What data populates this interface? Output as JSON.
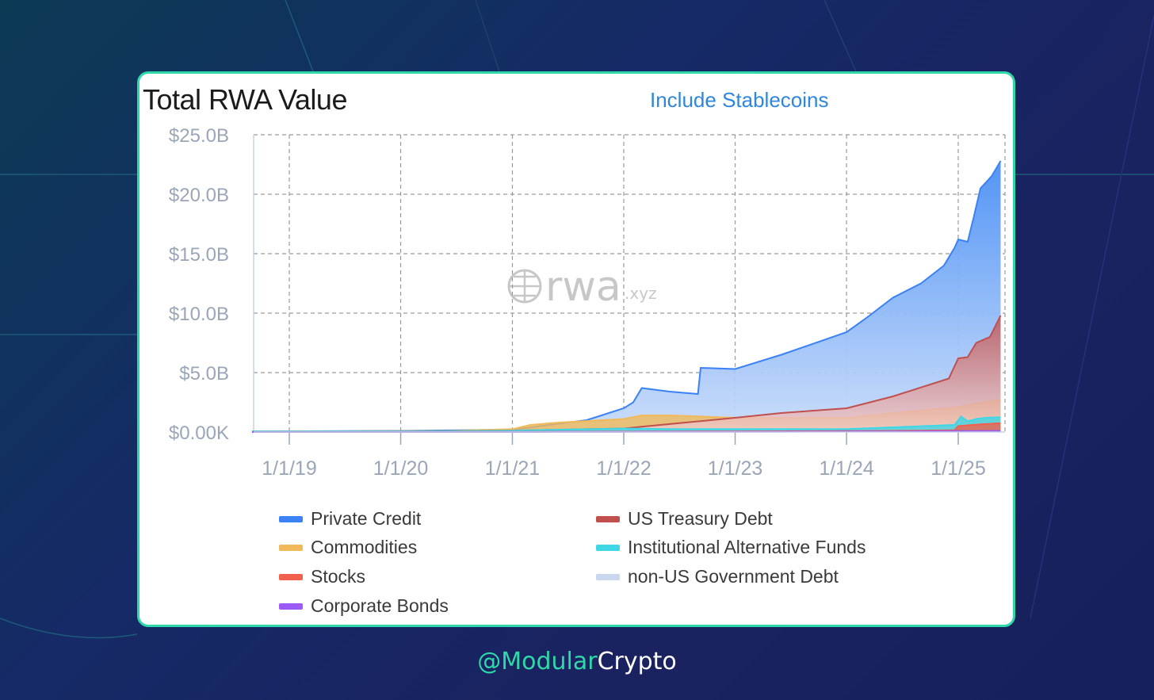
{
  "card": {
    "title": "Total RWA Value",
    "toggle_label": "Include Stablecoins"
  },
  "watermark": {
    "main": "rwa",
    "suffix": ".xyz"
  },
  "credit": {
    "handle": "@Modular",
    "name": "Crypto"
  },
  "colors": {
    "accent": "#2fd8a8",
    "link": "#2e86de",
    "private_credit": "#3b82f6",
    "us_treasury": "#c0504d",
    "commodities": "#f0b95a",
    "institutional_funds": "#3fd6e6",
    "stocks": "#f25f4c",
    "non_us_gov_debt": "#c9d8ef",
    "corporate_bonds": "#9b59f6"
  },
  "chart_data": {
    "type": "area",
    "stacked": true,
    "title": "Total RWA Value",
    "xlabel": "",
    "ylabel": "",
    "ylim": [
      0,
      25
    ],
    "y_unit": "billion USD",
    "yticks": [
      0,
      5,
      10,
      15,
      20,
      25
    ],
    "ytick_labels": [
      "$0.00K",
      "$5.0B",
      "$10.0B",
      "$15.0B",
      "$20.0B",
      "$25.0B"
    ],
    "xlim": [
      "2018-09-01",
      "2025-05-20"
    ],
    "xticks": [
      "2019-01-01",
      "2020-01-01",
      "2021-01-01",
      "2022-01-01",
      "2023-01-01",
      "2024-01-01",
      "2025-01-01"
    ],
    "xtick_labels": [
      "1/1/19",
      "1/1/20",
      "1/1/21",
      "1/1/22",
      "1/1/23",
      "1/1/24",
      "1/1/25"
    ],
    "grid": true,
    "legend_position": "bottom",
    "legend": [
      "Private Credit",
      "US Treasury Debt",
      "Commodities",
      "Institutional Alternative Funds",
      "Stocks",
      "non-US Government Debt",
      "Corporate Bonds"
    ],
    "series_totals_note": "",
    "stack_levels": [
      {
        "name": "Corporate Bonds",
        "top": [
          [
            "2018-09-01",
            0.0
          ],
          [
            "2021-01-01",
            0.0
          ],
          [
            "2023-01-01",
            0.02
          ],
          [
            "2024-06-01",
            0.05
          ],
          [
            "2025-05-20",
            0.1
          ]
        ]
      },
      {
        "name": "Stocks",
        "top": [
          [
            "2018-09-01",
            0.0
          ],
          [
            "2021-01-01",
            0.02
          ],
          [
            "2023-01-01",
            0.05
          ],
          [
            "2024-06-01",
            0.1
          ],
          [
            "2024-12-20",
            0.15
          ],
          [
            "2025-01-01",
            0.5
          ],
          [
            "2025-02-15",
            0.6
          ],
          [
            "2025-05-20",
            0.75
          ]
        ]
      },
      {
        "name": "Institutional Alternative Funds",
        "top": [
          [
            "2018-09-01",
            0.05
          ],
          [
            "2020-06-01",
            0.08
          ],
          [
            "2021-01-01",
            0.12
          ],
          [
            "2021-06-01",
            0.2
          ],
          [
            "2022-01-01",
            0.3
          ],
          [
            "2022-06-01",
            0.25
          ],
          [
            "2023-01-01",
            0.25
          ],
          [
            "2024-01-01",
            0.25
          ],
          [
            "2024-06-01",
            0.4
          ],
          [
            "2024-12-20",
            0.6
          ],
          [
            "2025-01-01",
            1.0
          ],
          [
            "2025-01-10",
            1.3
          ],
          [
            "2025-02-01",
            0.9
          ],
          [
            "2025-03-01",
            1.1
          ],
          [
            "2025-04-01",
            1.2
          ],
          [
            "2025-05-20",
            1.25
          ]
        ]
      },
      {
        "name": "US Treasury Debt",
        "top": [
          [
            "2018-09-01",
            0.05
          ],
          [
            "2021-01-01",
            0.12
          ],
          [
            "2022-01-01",
            0.3
          ],
          [
            "2023-01-01",
            1.2
          ],
          [
            "2023-06-01",
            1.6
          ],
          [
            "2024-01-01",
            2.0
          ],
          [
            "2024-06-01",
            3.0
          ],
          [
            "2024-12-01",
            4.5
          ],
          [
            "2025-01-01",
            6.2
          ],
          [
            "2025-02-01",
            6.3
          ],
          [
            "2025-03-01",
            7.5
          ],
          [
            "2025-04-15",
            8.0
          ],
          [
            "2025-05-20",
            9.8
          ]
        ]
      },
      {
        "name": "Commodities",
        "top": [
          [
            "2018-09-01",
            0.05
          ],
          [
            "2020-06-01",
            0.1
          ],
          [
            "2021-01-01",
            0.25
          ],
          [
            "2021-03-01",
            0.6
          ],
          [
            "2021-06-01",
            0.8
          ],
          [
            "2022-01-01",
            1.1
          ],
          [
            "2022-03-01",
            1.4
          ],
          [
            "2022-06-01",
            1.4
          ],
          [
            "2023-01-01",
            1.2
          ],
          [
            "2024-01-01",
            1.2
          ],
          [
            "2024-06-01",
            1.6
          ],
          [
            "2025-01-01",
            2.1
          ],
          [
            "2025-03-01",
            2.4
          ],
          [
            "2025-05-20",
            2.7
          ]
        ]
      },
      {
        "name": "Private Credit",
        "top": [
          [
            "2018-09-01",
            0.05
          ],
          [
            "2020-01-01",
            0.1
          ],
          [
            "2021-01-01",
            0.2
          ],
          [
            "2021-06-01",
            0.7
          ],
          [
            "2021-09-01",
            1.0
          ],
          [
            "2022-01-01",
            2.0
          ],
          [
            "2022-02-01",
            2.5
          ],
          [
            "2022-03-01",
            3.7
          ],
          [
            "2022-06-01",
            3.4
          ],
          [
            "2022-09-01",
            3.2
          ],
          [
            "2022-09-10",
            5.4
          ],
          [
            "2023-01-01",
            5.3
          ],
          [
            "2023-06-01",
            6.5
          ],
          [
            "2024-01-01",
            8.4
          ],
          [
            "2024-03-01",
            9.5
          ],
          [
            "2024-06-01",
            11.3
          ],
          [
            "2024-09-01",
            12.5
          ],
          [
            "2024-11-15",
            14.0
          ],
          [
            "2024-12-20",
            15.5
          ],
          [
            "2025-01-01",
            16.2
          ],
          [
            "2025-02-01",
            16.0
          ],
          [
            "2025-02-20",
            18.0
          ],
          [
            "2025-03-15",
            20.5
          ],
          [
            "2025-04-20",
            21.5
          ],
          [
            "2025-05-20",
            22.8
          ]
        ]
      }
    ]
  }
}
